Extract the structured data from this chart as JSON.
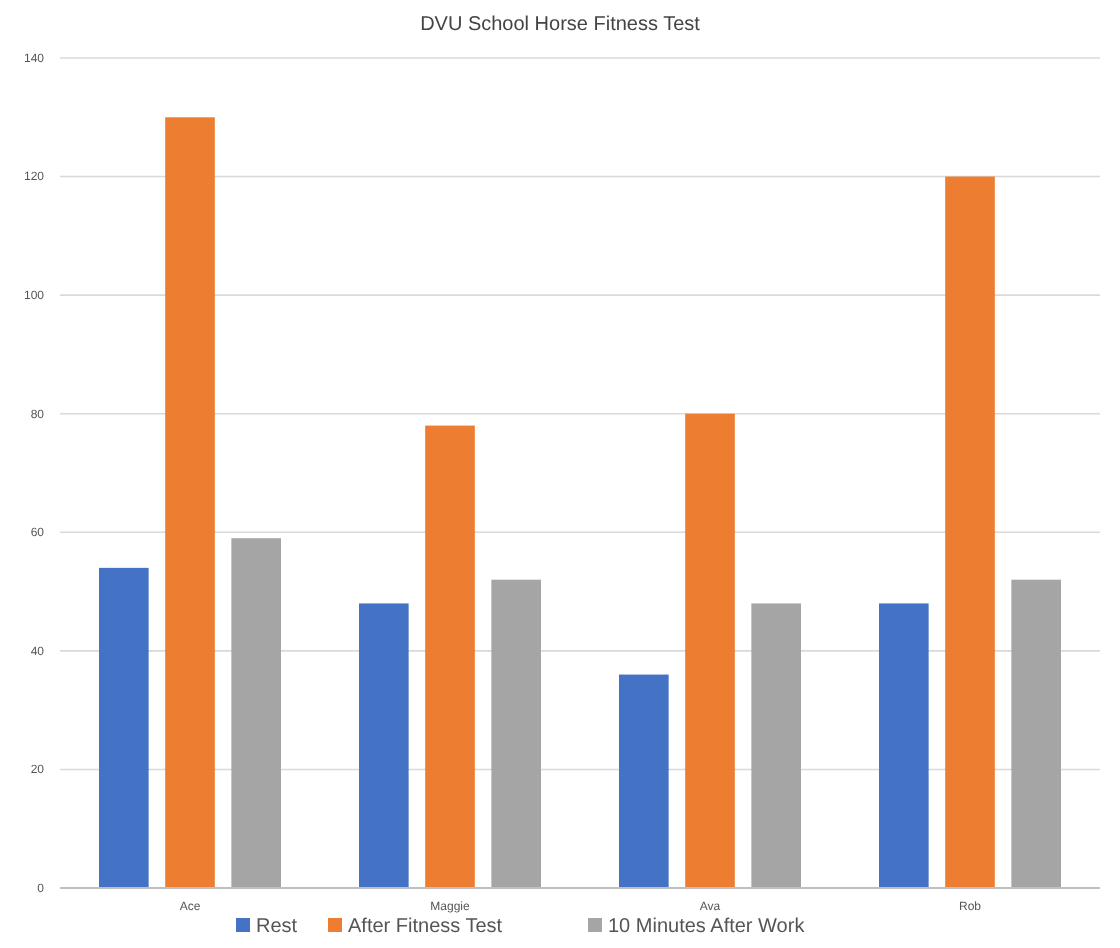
{
  "chart_data": {
    "type": "bar",
    "title": "DVU School Horse Fitness Test",
    "categories": [
      "Ace",
      "Maggie",
      "Ava",
      "Rob"
    ],
    "series": [
      {
        "name": "Rest",
        "color": "#4472c4",
        "values": [
          54,
          48,
          36,
          48
        ]
      },
      {
        "name": "After Fitness Test",
        "color": "#ed7d31",
        "values": [
          130,
          78,
          80,
          120
        ]
      },
      {
        "name": "10 Minutes After Work",
        "color": "#a5a5a5",
        "values": [
          59,
          52,
          48,
          52
        ]
      }
    ],
    "ylim": [
      0,
      140
    ],
    "yticks": [
      0,
      20,
      40,
      60,
      80,
      100,
      120,
      140
    ],
    "grid": "y",
    "legend": "bottom"
  }
}
